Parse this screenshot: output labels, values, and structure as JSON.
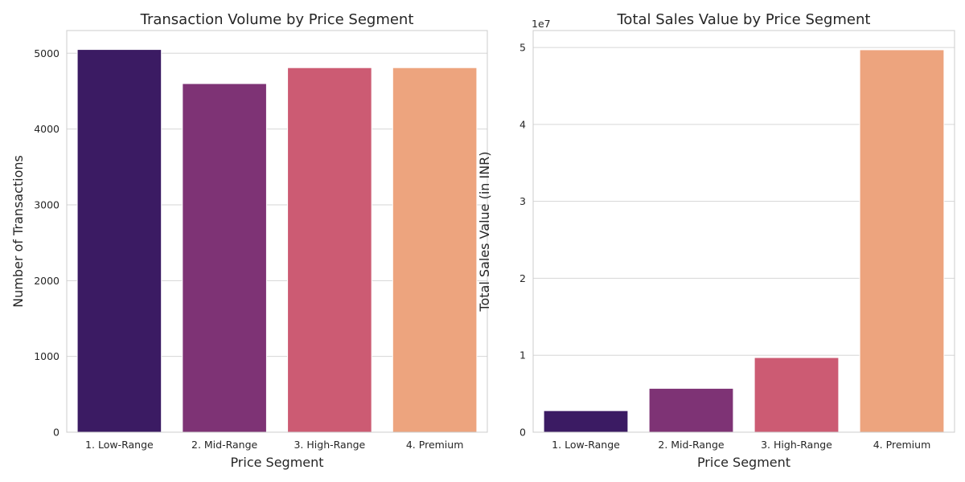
{
  "chart_data": [
    {
      "type": "bar",
      "title": "Transaction Volume by Price Segment",
      "xlabel": "Price Segment",
      "ylabel": "Number of Transactions",
      "categories": [
        "1. Low-Range",
        "2. Mid-Range",
        "3. High-Range",
        "4. Premium"
      ],
      "values": [
        5050,
        4600,
        4810,
        4810
      ],
      "colors": [
        "#3b1b63",
        "#7e3375",
        "#cc5b73",
        "#eda47e"
      ],
      "ylim": [
        0,
        5300
      ],
      "yticks": [
        0,
        1000,
        2000,
        3000,
        4000,
        5000
      ],
      "ytick_labels": [
        "0",
        "1000",
        "2000",
        "3000",
        "4000",
        "5000"
      ],
      "grid": true,
      "legend": "none"
    },
    {
      "type": "bar",
      "title": "Total Sales Value by Price Segment",
      "xlabel": "Price Segment",
      "ylabel": "Total Sales Value (in INR)",
      "categories": [
        "1. Low-Range",
        "2. Mid-Range",
        "3. High-Range",
        "4. Premium"
      ],
      "values": [
        2800000,
        5700000,
        9700000,
        49700000
      ],
      "colors": [
        "#3b1b63",
        "#7e3375",
        "#cc5b73",
        "#eda47e"
      ],
      "ylim": [
        0,
        52200000
      ],
      "yticks": [
        0,
        10000000,
        20000000,
        30000000,
        40000000,
        50000000
      ],
      "ytick_labels": [
        "0",
        "1",
        "2",
        "3",
        "4",
        "5"
      ],
      "offset_label": "1e7",
      "grid": true,
      "legend": "none"
    }
  ]
}
